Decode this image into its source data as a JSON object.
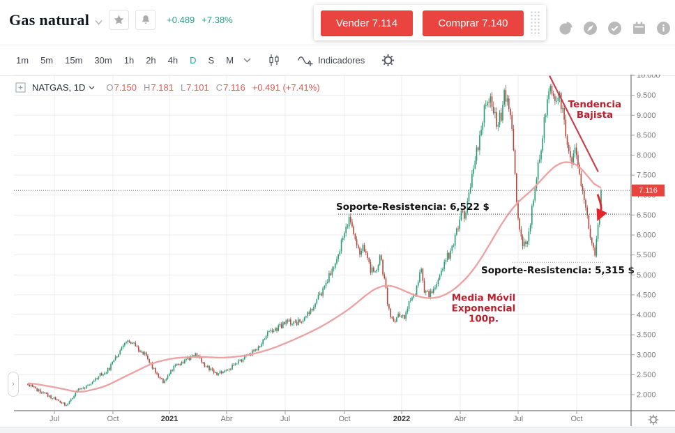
{
  "header": {
    "title": "Gas natural",
    "change_abs": "+0.489",
    "change_pct": "+7.38%",
    "sell_label": "Vender 7.114",
    "buy_label": "Comprar 7.140"
  },
  "icons": {
    "header_right": [
      "pie-chart",
      "compass",
      "check-circle",
      "calendar",
      "info"
    ],
    "title_row": [
      "chevron-down",
      "star",
      "bell"
    ]
  },
  "toolbar": {
    "intervals": [
      "1m",
      "5m",
      "15m",
      "30m",
      "1h",
      "2h",
      "4h",
      "D",
      "S",
      "M"
    ],
    "active_interval": "D",
    "indicators_label": "Indicadores"
  },
  "legend": {
    "symbol": "NATGAS, 1D",
    "ohlc": [
      {
        "k": "O",
        "v": "7.150"
      },
      {
        "k": "H",
        "v": "7.181"
      },
      {
        "k": "L",
        "v": "7.101"
      },
      {
        "k": "C",
        "v": "7.116"
      }
    ],
    "change": "+0.491 (+7.41%)"
  },
  "colors": {
    "accent_red": "#ea4440",
    "teal": "#26a69a",
    "candle_up": "#259b72",
    "candle_down": "#b0453c",
    "ema": "#ec9e9e",
    "trend": "#c9404e",
    "annotation_red": "#bb1f2e",
    "arrow": "#e3252b",
    "price_label_bg": "#e8443f",
    "grid": "#ececec",
    "axis": "#555555",
    "tick_text": "#757575"
  },
  "chart_data": {
    "type": "candlestick",
    "title": "NATGAS, 1D",
    "ohlc_current": {
      "open": 7.15,
      "high": 7.181,
      "low": 7.101,
      "close": 7.116,
      "change": "+0.491 (+7.41%)"
    },
    "current_price": {
      "value": 7.116,
      "label": "7.116"
    },
    "y_axis": {
      "min": 2.0,
      "max": 10.0,
      "step": 0.5,
      "ticks": [
        10,
        9.5,
        9,
        8.5,
        8,
        7.5,
        7,
        6.5,
        6,
        5.5,
        5,
        4.5,
        4,
        3.5,
        3,
        2.5,
        2
      ]
    },
    "x_axis": {
      "ticks": [
        {
          "label": "Jul"
        },
        {
          "label": "Oct"
        },
        {
          "label": "2021",
          "bold": true
        },
        {
          "label": "Abr"
        },
        {
          "label": "Jul"
        },
        {
          "label": "Oct"
        },
        {
          "label": "2022",
          "bold": true
        },
        {
          "label": "Abr"
        },
        {
          "label": "Jul"
        },
        {
          "label": "Oct"
        }
      ]
    },
    "support_resistance": [
      {
        "value": 6.522,
        "label": "Soporte-Resistencia: 6,522 $",
        "label_side": "above"
      },
      {
        "value": 5.315,
        "label": "Soporte-Resistencia: 5,315 $",
        "label_side": "below"
      }
    ],
    "annotations": [
      {
        "name": "tendencia-bajista",
        "lines": [
          "Tendencia",
          "Bajista"
        ],
        "t": 0.989,
        "price": 9.2
      },
      {
        "name": "media-movil",
        "lines": [
          "Media Móvil",
          "Exponencial",
          "100p."
        ],
        "t": 0.795,
        "price": 4.35
      }
    ],
    "trend_line": {
      "t1": 0.91,
      "p1": 9.99,
      "t2": 0.995,
      "p2": 7.58
    },
    "arrow": {
      "t1": 0.9939,
      "p1": 7.02,
      "t2": 0.998,
      "p2": 6.45
    },
    "ema": {
      "name": "Media Móvil Exponencial 100p.",
      "keyframes": [
        [
          0.0,
          2.3
        ],
        [
          0.049,
          2.18
        ],
        [
          0.091,
          2.05
        ],
        [
          0.134,
          2.2
        ],
        [
          0.176,
          2.5
        ],
        [
          0.219,
          2.8
        ],
        [
          0.255,
          2.92
        ],
        [
          0.298,
          2.95
        ],
        [
          0.341,
          2.92
        ],
        [
          0.383,
          2.98
        ],
        [
          0.426,
          3.15
        ],
        [
          0.468,
          3.4
        ],
        [
          0.505,
          3.65
        ],
        [
          0.535,
          3.9
        ],
        [
          0.566,
          4.2
        ],
        [
          0.594,
          4.55
        ],
        [
          0.614,
          4.72
        ],
        [
          0.633,
          4.75
        ],
        [
          0.657,
          4.6
        ],
        [
          0.681,
          4.45
        ],
        [
          0.706,
          4.4
        ],
        [
          0.73,
          4.5
        ],
        [
          0.754,
          4.75
        ],
        [
          0.779,
          5.15
        ],
        [
          0.803,
          5.7
        ],
        [
          0.827,
          6.3
        ],
        [
          0.852,
          6.8
        ],
        [
          0.87,
          7.0
        ],
        [
          0.888,
          7.25
        ],
        [
          0.906,
          7.55
        ],
        [
          0.925,
          7.8
        ],
        [
          0.943,
          7.85
        ],
        [
          0.961,
          7.75
        ],
        [
          0.973,
          7.55
        ],
        [
          0.985,
          7.3
        ],
        [
          1.0,
          7.1
        ]
      ]
    },
    "price_keyframes": [
      [
        0.0,
        2.25
      ],
      [
        0.024,
        2.05
      ],
      [
        0.049,
        1.88
      ],
      [
        0.067,
        1.72
      ],
      [
        0.085,
        2.1
      ],
      [
        0.103,
        2.22
      ],
      [
        0.122,
        2.45
      ],
      [
        0.14,
        2.62
      ],
      [
        0.158,
        3.05
      ],
      [
        0.174,
        3.38
      ],
      [
        0.189,
        3.22
      ],
      [
        0.207,
        2.95
      ],
      [
        0.225,
        2.52
      ],
      [
        0.237,
        2.32
      ],
      [
        0.255,
        2.68
      ],
      [
        0.274,
        2.88
      ],
      [
        0.292,
        3.0
      ],
      [
        0.31,
        2.72
      ],
      [
        0.328,
        2.5
      ],
      [
        0.347,
        2.6
      ],
      [
        0.365,
        2.8
      ],
      [
        0.383,
        2.95
      ],
      [
        0.401,
        3.18
      ],
      [
        0.42,
        3.58
      ],
      [
        0.438,
        3.68
      ],
      [
        0.453,
        3.85
      ],
      [
        0.467,
        3.78
      ],
      [
        0.482,
        3.95
      ],
      [
        0.496,
        4.15
      ],
      [
        0.508,
        4.45
      ],
      [
        0.521,
        4.8
      ],
      [
        0.533,
        5.2
      ],
      [
        0.545,
        5.72
      ],
      [
        0.555,
        6.28
      ],
      [
        0.562,
        6.4
      ],
      [
        0.569,
        6.0
      ],
      [
        0.578,
        5.58
      ],
      [
        0.586,
        5.75
      ],
      [
        0.596,
        5.18
      ],
      [
        0.606,
        5.08
      ],
      [
        0.614,
        5.5
      ],
      [
        0.622,
        4.88
      ],
      [
        0.63,
        4.08
      ],
      [
        0.639,
        3.75
      ],
      [
        0.647,
        4.05
      ],
      [
        0.657,
        3.95
      ],
      [
        0.667,
        4.38
      ],
      [
        0.676,
        4.45
      ],
      [
        0.685,
        5.28
      ],
      [
        0.691,
        4.65
      ],
      [
        0.699,
        4.5
      ],
      [
        0.709,
        4.7
      ],
      [
        0.719,
        5.0
      ],
      [
        0.729,
        5.45
      ],
      [
        0.738,
        5.5
      ],
      [
        0.747,
        6.05
      ],
      [
        0.756,
        6.55
      ],
      [
        0.763,
        6.4
      ],
      [
        0.77,
        7.1
      ],
      [
        0.779,
        7.8
      ],
      [
        0.787,
        8.4
      ],
      [
        0.796,
        9.1
      ],
      [
        0.803,
        9.45
      ],
      [
        0.81,
        9.25
      ],
      [
        0.818,
        8.8
      ],
      [
        0.825,
        8.95
      ],
      [
        0.832,
        9.55
      ],
      [
        0.838,
        9.35
      ],
      [
        0.844,
        8.7
      ],
      [
        0.85,
        7.4
      ],
      [
        0.856,
        6.3
      ],
      [
        0.862,
        5.8
      ],
      [
        0.869,
        5.7
      ],
      [
        0.876,
        6.3
      ],
      [
        0.883,
        7.0
      ],
      [
        0.89,
        7.8
      ],
      [
        0.898,
        8.5
      ],
      [
        0.905,
        9.2
      ],
      [
        0.911,
        9.9
      ],
      [
        0.917,
        9.55
      ],
      [
        0.923,
        9.2
      ],
      [
        0.929,
        9.45
      ],
      [
        0.935,
        8.9
      ],
      [
        0.941,
        8.3
      ],
      [
        0.948,
        7.85
      ],
      [
        0.954,
        8.15
      ],
      [
        0.96,
        7.8
      ],
      [
        0.966,
        7.3
      ],
      [
        0.972,
        6.9
      ],
      [
        0.978,
        6.3
      ],
      [
        0.984,
        5.8
      ],
      [
        0.989,
        5.45
      ],
      [
        0.994,
        6.1
      ],
      [
        0.998,
        6.7
      ],
      [
        1.0,
        7.116
      ]
    ]
  }
}
